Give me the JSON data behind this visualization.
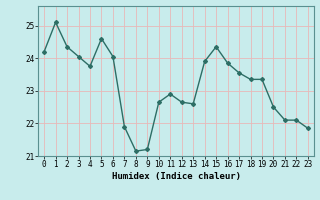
{
  "x": [
    0,
    1,
    2,
    3,
    4,
    5,
    6,
    7,
    8,
    9,
    10,
    11,
    12,
    13,
    14,
    15,
    16,
    17,
    18,
    19,
    20,
    21,
    22,
    23
  ],
  "y": [
    24.2,
    25.1,
    24.35,
    24.05,
    23.75,
    24.6,
    24.05,
    21.9,
    21.15,
    21.2,
    22.65,
    22.9,
    22.65,
    22.6,
    23.9,
    24.35,
    23.85,
    23.55,
    23.35,
    23.35,
    22.5,
    22.1,
    22.1,
    21.85
  ],
  "line_color": "#2d6e65",
  "marker": "D",
  "marker_size": 2,
  "bg_color": "#c8ecec",
  "grid_color": "#e8b8b8",
  "xlabel": "Humidex (Indice chaleur)",
  "ylim": [
    21,
    25.6
  ],
  "xlim": [
    -0.5,
    23.5
  ],
  "yticks": [
    21,
    22,
    23,
    24,
    25
  ],
  "xticks": [
    0,
    1,
    2,
    3,
    4,
    5,
    6,
    7,
    8,
    9,
    10,
    11,
    12,
    13,
    14,
    15,
    16,
    17,
    18,
    19,
    20,
    21,
    22,
    23
  ],
  "tick_label_size": 5.5,
  "xlabel_size": 6.5,
  "line_width": 1.0
}
